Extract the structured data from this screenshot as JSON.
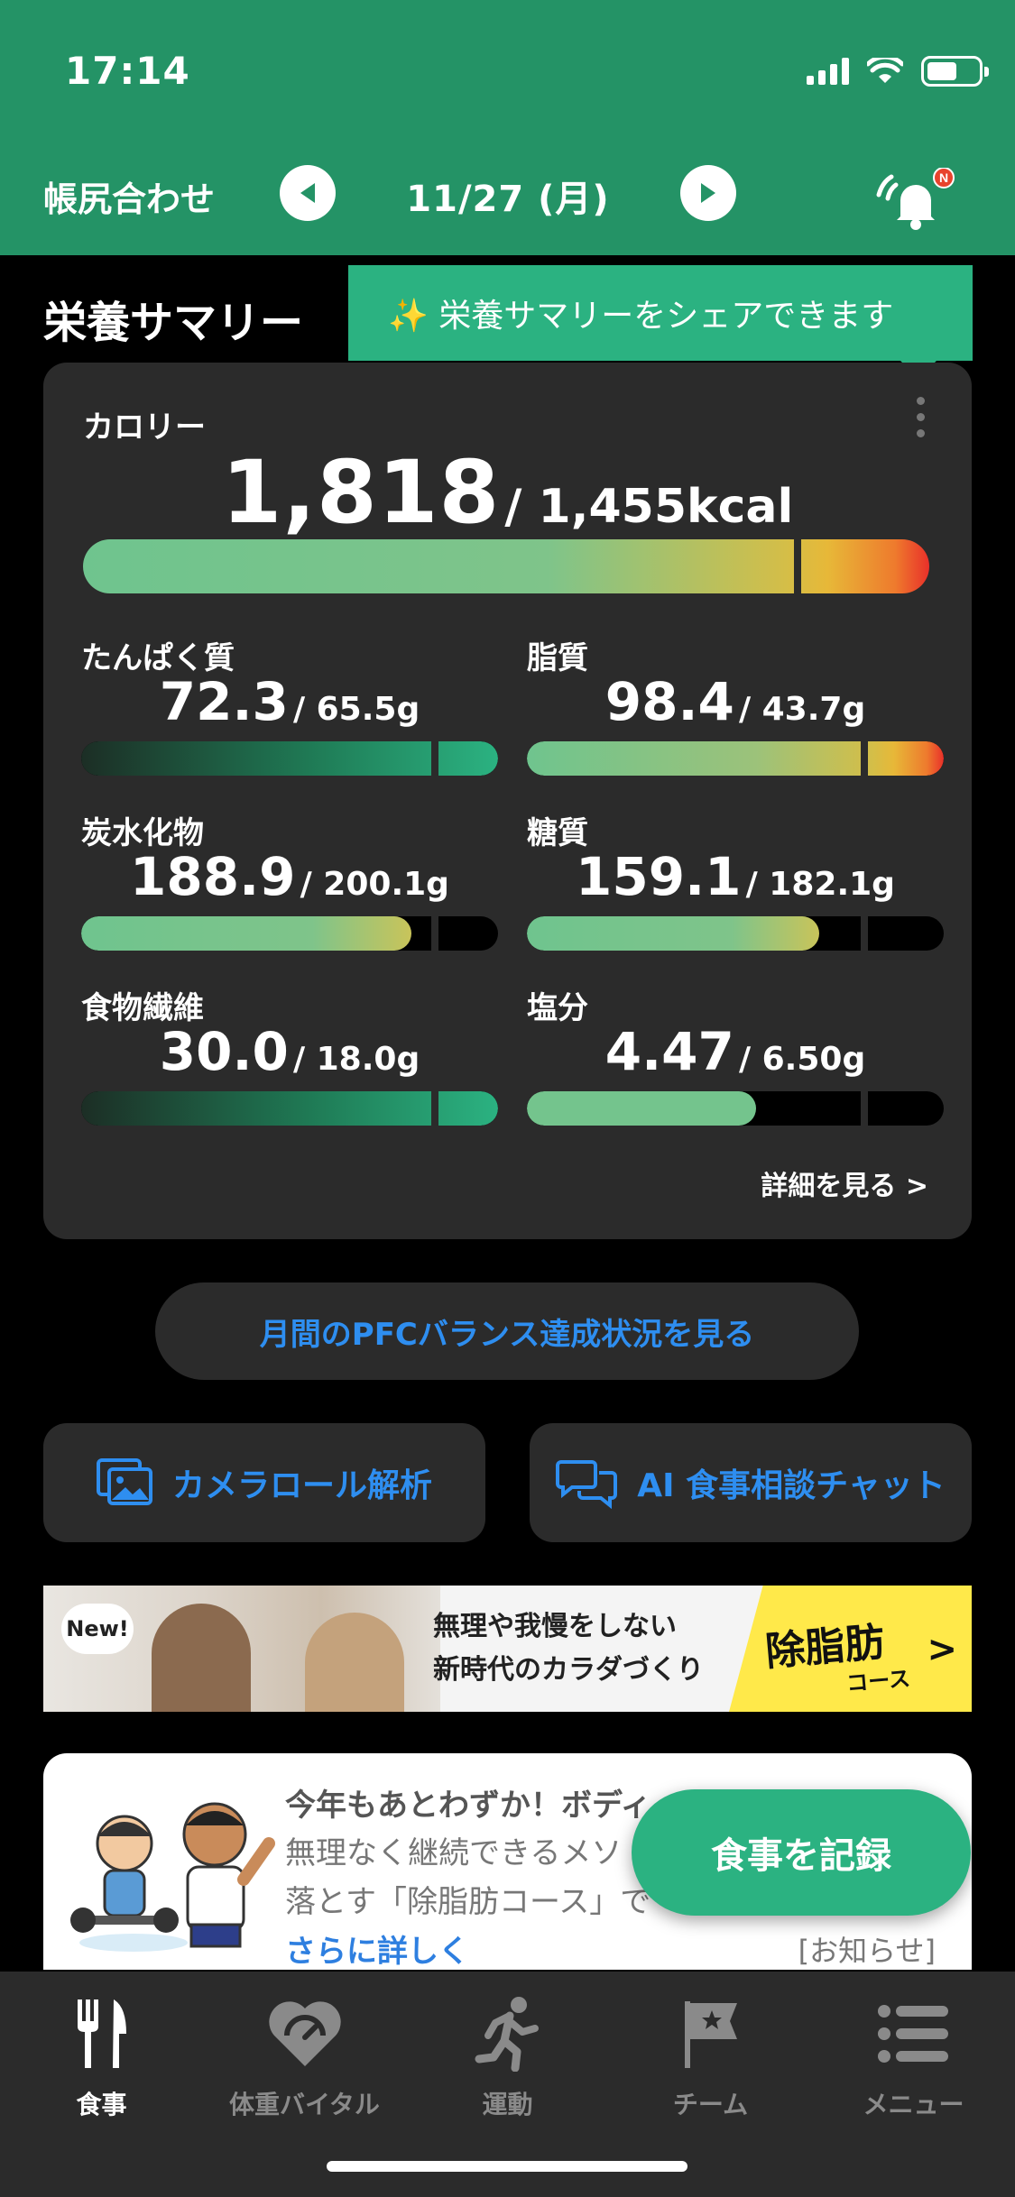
{
  "status_bar": {
    "time": "17:14"
  },
  "header": {
    "nav_title": "帳尻合わせ",
    "date": "11/27 (月)",
    "notification_badge": "N"
  },
  "summary": {
    "title": "栄養サマリー",
    "tooltip": "✨ 栄養サマリーをシェアできます",
    "calorie": {
      "label": "カロリー",
      "value": "1,818",
      "target": "/ 1,455kcal",
      "ratio": 1.25
    },
    "nutrients": [
      {
        "label": "たんぱく質",
        "value": "72.3",
        "target": "/ 65.5g",
        "ratio": 1.1
      },
      {
        "label": "脂質",
        "value": "98.4",
        "target": "/ 43.7g",
        "ratio": 2.25
      },
      {
        "label": "炭水化物",
        "value": "188.9",
        "target": "/ 200.1g",
        "ratio": 0.94
      },
      {
        "label": "糖質",
        "value": "159.1",
        "target": "/ 182.1g",
        "ratio": 0.87
      },
      {
        "label": "食物繊維",
        "value": "30.0",
        "target": "/ 18.0g",
        "ratio": 1.67
      },
      {
        "label": "塩分",
        "value": "4.47",
        "target": "/ 6.50g",
        "ratio": 0.69
      }
    ],
    "detail_link": "詳細を見る >"
  },
  "actions": {
    "pfc_button": "月間のPFCバランス達成状況を見る",
    "camera_roll": "カメラロール解析",
    "ai_chat": "AI 食事相談チャット"
  },
  "banner": {
    "badge": "New!",
    "line1": "無理や我慢をしない",
    "line2": "新時代のカラダづくり",
    "course": "除脂肪",
    "course_sub": "コース",
    "arrow": ">"
  },
  "notice": {
    "title": "今年もあとわずか！ボディ",
    "body_line1": "無理なく継続できるメソ",
    "body_line2": "落とす「除脂肪コース」で",
    "link": "さらに詳しく",
    "tag": "[お知らせ]"
  },
  "fab": {
    "label": "食事を記録"
  },
  "tabbar": {
    "tabs": [
      {
        "label": "食事"
      },
      {
        "label": "体重バイタル"
      },
      {
        "label": "運動"
      },
      {
        "label": "チーム"
      },
      {
        "label": "メニュー"
      }
    ]
  },
  "colors": {
    "brand_green": "#249366",
    "accent_green": "#2bb281",
    "link_blue": "#2e8ef0"
  }
}
